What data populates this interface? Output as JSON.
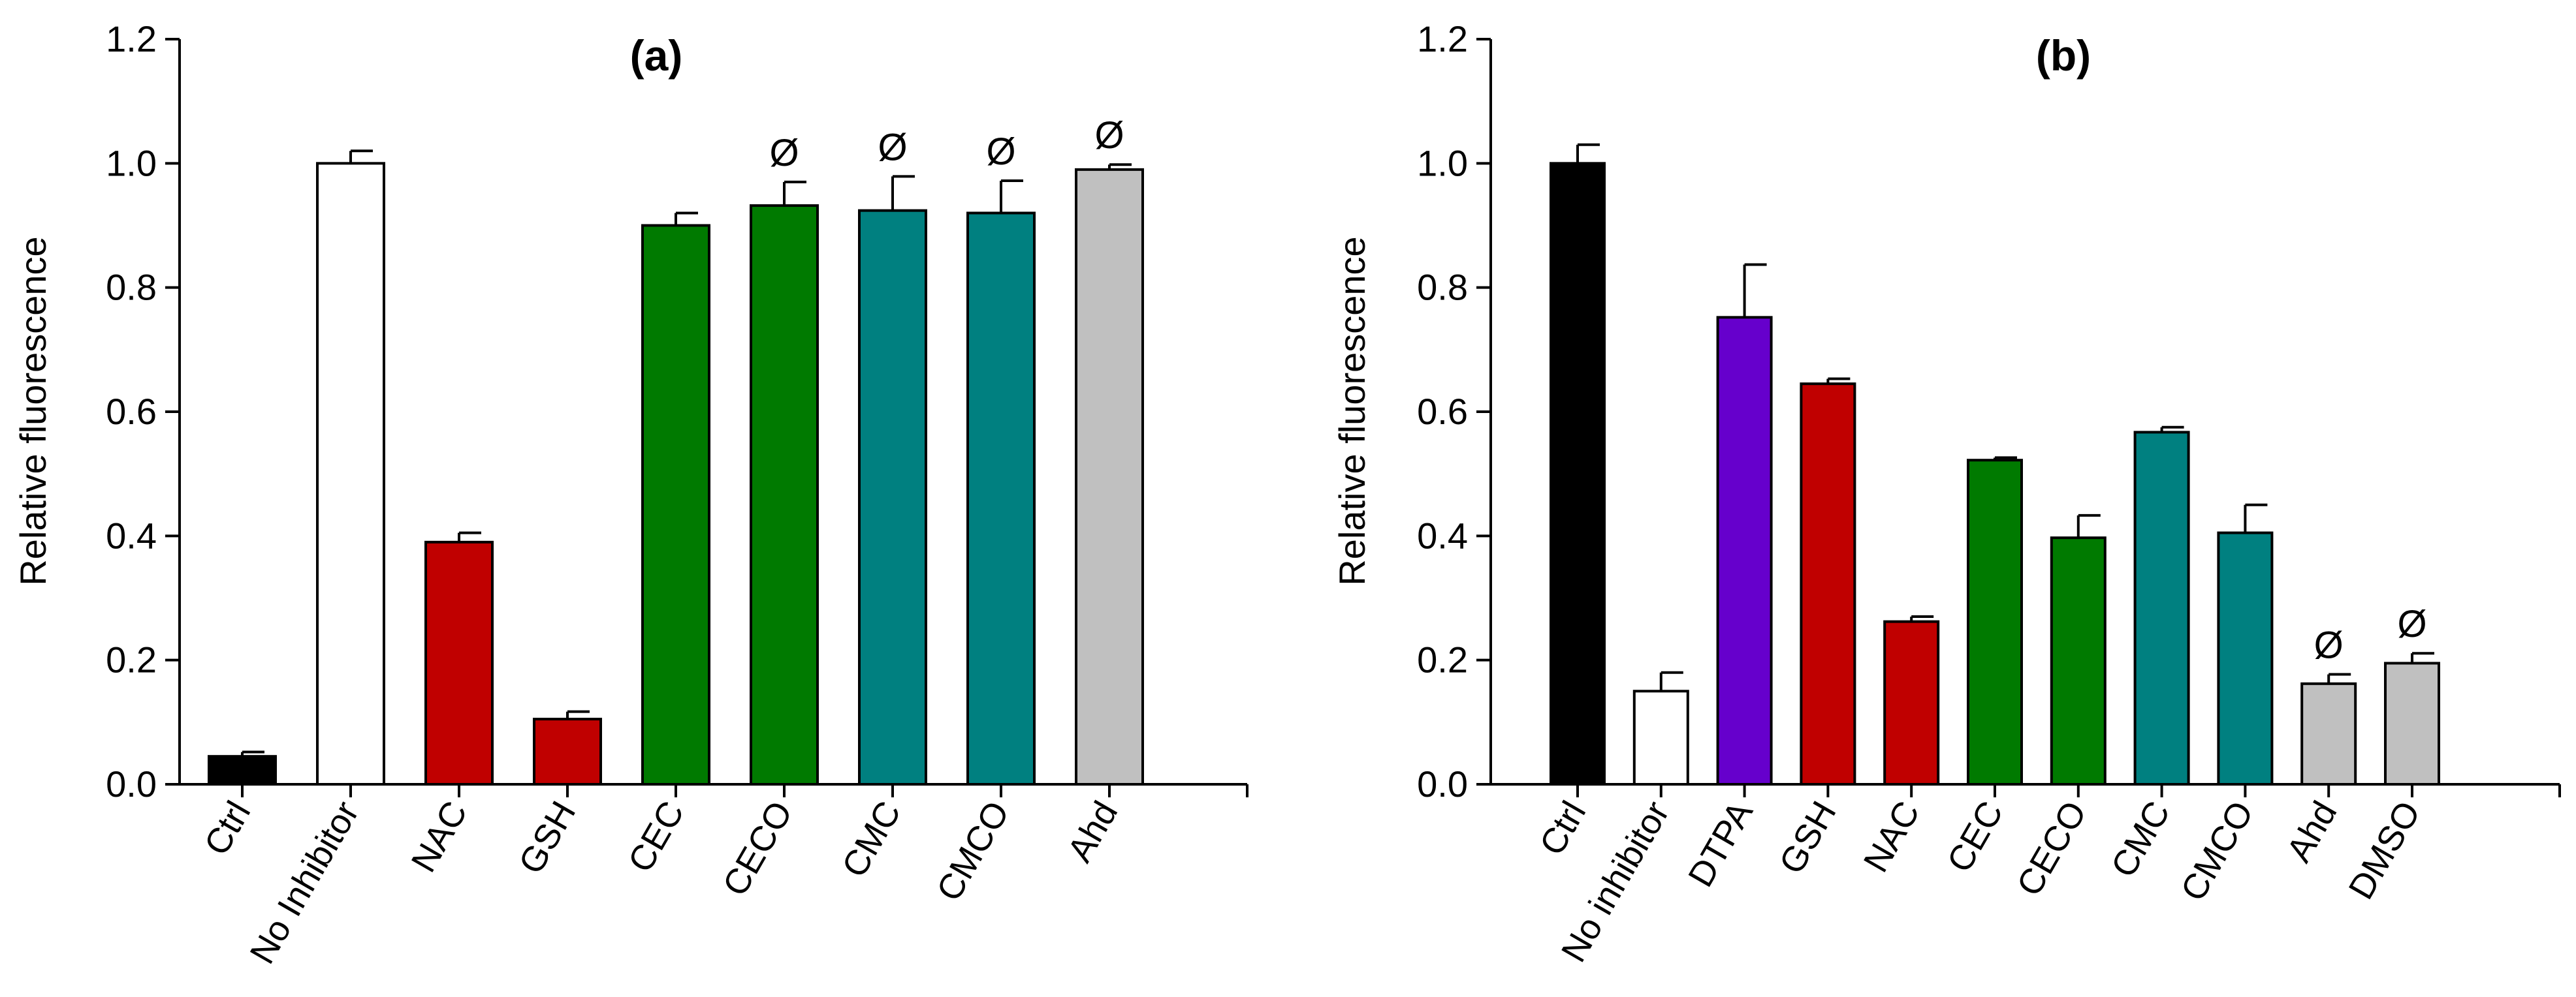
{
  "chart_data": [
    {
      "type": "bar",
      "title": "(a)",
      "xlabel": "",
      "ylabel": "Relative fluorescence",
      "ylim": [
        0,
        1.2
      ],
      "yticks": [
        "0.0",
        "0.2",
        "0.4",
        "0.6",
        "0.8",
        "1.0",
        "1.2"
      ],
      "categories": [
        "Ctrl",
        "No Inhibitor",
        "NAC",
        "GSH",
        "CEC",
        "CECO",
        "CMC",
        "CMCO",
        "Ahd"
      ],
      "values": [
        0.045,
        1.0,
        0.39,
        0.105,
        0.9,
        0.932,
        0.924,
        0.92,
        0.99
      ],
      "errors": [
        0.007,
        0.02,
        0.015,
        0.012,
        0.02,
        0.038,
        0.055,
        0.052,
        0.008
      ],
      "colors": [
        "#000000",
        "#ffffff",
        "#c00000",
        "#c00000",
        "#007a00",
        "#007a00",
        "#008080",
        "#008080",
        "#c0c0c0"
      ],
      "annotations": [
        "",
        "",
        "",
        "",
        "",
        "Ø",
        "Ø",
        "Ø",
        "Ø"
      ]
    },
    {
      "type": "bar",
      "title": "(b)",
      "xlabel": "",
      "ylabel": "Relative fluorescence",
      "ylim": [
        0,
        1.2
      ],
      "yticks": [
        "0.0",
        "0.2",
        "0.4",
        "0.6",
        "0.8",
        "1.0",
        "1.2"
      ],
      "categories": [
        "Ctrl",
        "No inhibitor",
        "DTPA",
        "GSH",
        "NAC",
        "CEC",
        "CECO",
        "CMC",
        "CMCO",
        "Ahd",
        "DMSO"
      ],
      "values": [
        1.0,
        0.15,
        0.752,
        0.645,
        0.262,
        0.522,
        0.397,
        0.567,
        0.405,
        0.162,
        0.195
      ],
      "errors": [
        0.03,
        0.03,
        0.085,
        0.008,
        0.008,
        0.004,
        0.036,
        0.008,
        0.045,
        0.015,
        0.016
      ],
      "colors": [
        "#000000",
        "#ffffff",
        "#6600cc",
        "#c00000",
        "#c00000",
        "#007a00",
        "#007a00",
        "#008080",
        "#008080",
        "#c0c0c0",
        "#c0c0c0"
      ],
      "annotations": [
        "",
        "",
        "",
        "",
        "",
        "",
        "",
        "",
        "",
        "Ø",
        "Ø"
      ]
    }
  ]
}
